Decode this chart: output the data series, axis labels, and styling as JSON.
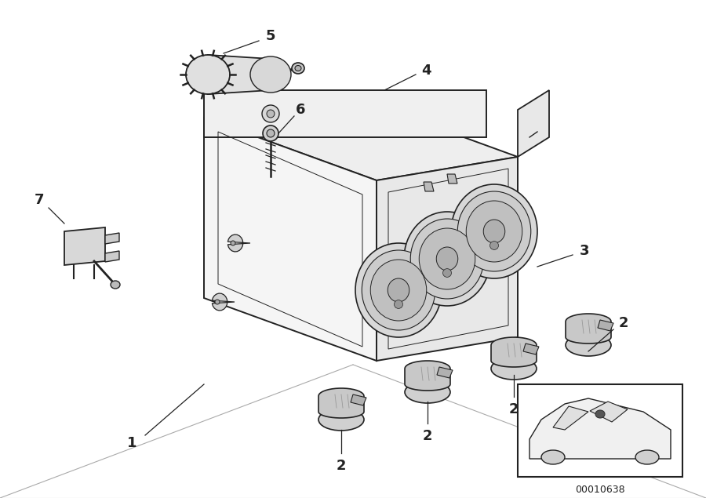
{
  "bg_color": "#ffffff",
  "line_color": "#222222",
  "fig_width": 9.0,
  "fig_height": 6.35,
  "dpi": 100,
  "diagram_id": "00010638",
  "face_fill_top": "#eeeeee",
  "face_fill_left": "#f5f5f5",
  "face_fill_right": "#e8e8e8",
  "face_fill_back": "#f0f0f0",
  "knob_fill": "#cccccc",
  "dial_fill_outer": "#e0e0e0",
  "dial_fill_inner": "#d0d0d0",
  "dial_fill_center": "#b8b8b8"
}
